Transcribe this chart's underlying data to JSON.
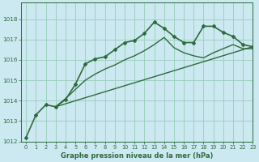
{
  "title": "Graphe pression niveau de la mer (hPa)",
  "background_color": "#cce8f0",
  "grid_color": "#99ccbb",
  "line_color": "#2d6b3c",
  "xlim": [
    -0.5,
    23
  ],
  "ylim": [
    1012,
    1018.8
  ],
  "yticks": [
    1012,
    1013,
    1014,
    1015,
    1016,
    1017,
    1018
  ],
  "xticks": [
    0,
    1,
    2,
    3,
    4,
    5,
    6,
    7,
    8,
    9,
    10,
    11,
    12,
    13,
    14,
    15,
    16,
    17,
    18,
    19,
    20,
    21,
    22,
    23
  ],
  "series": [
    {
      "x": [
        0,
        1,
        2,
        3,
        4,
        5,
        6,
        7,
        8,
        9,
        10,
        11,
        12,
        13,
        14,
        15,
        16,
        17,
        18,
        19,
        20,
        21,
        22,
        23
      ],
      "y": [
        1012.2,
        1013.3,
        1013.8,
        1013.7,
        1014.05,
        1014.8,
        1015.8,
        1016.05,
        1016.15,
        1016.5,
        1016.85,
        1016.95,
        1017.3,
        1017.85,
        1017.55,
        1017.15,
        1016.85,
        1016.85,
        1017.65,
        1017.65,
        1017.35,
        1017.15,
        1016.75,
        1016.65
      ],
      "marker": true,
      "linewidth": 1.2
    },
    {
      "x": [
        3,
        4,
        5,
        6,
        7,
        8,
        9,
        10,
        11,
        12,
        13,
        14,
        15,
        16,
        17,
        18,
        19,
        20,
        21,
        22,
        23
      ],
      "y": [
        1013.7,
        1014.1,
        1014.55,
        1015.0,
        1015.3,
        1015.55,
        1015.75,
        1016.0,
        1016.2,
        1016.45,
        1016.75,
        1017.1,
        1016.6,
        1016.35,
        1016.2,
        1016.1,
        1016.35,
        1016.55,
        1016.75,
        1016.55,
        1016.55
      ],
      "marker": false,
      "linewidth": 1.0
    },
    {
      "x": [
        3,
        23
      ],
      "y": [
        1013.7,
        1016.65
      ],
      "marker": false,
      "linewidth": 1.0
    }
  ]
}
